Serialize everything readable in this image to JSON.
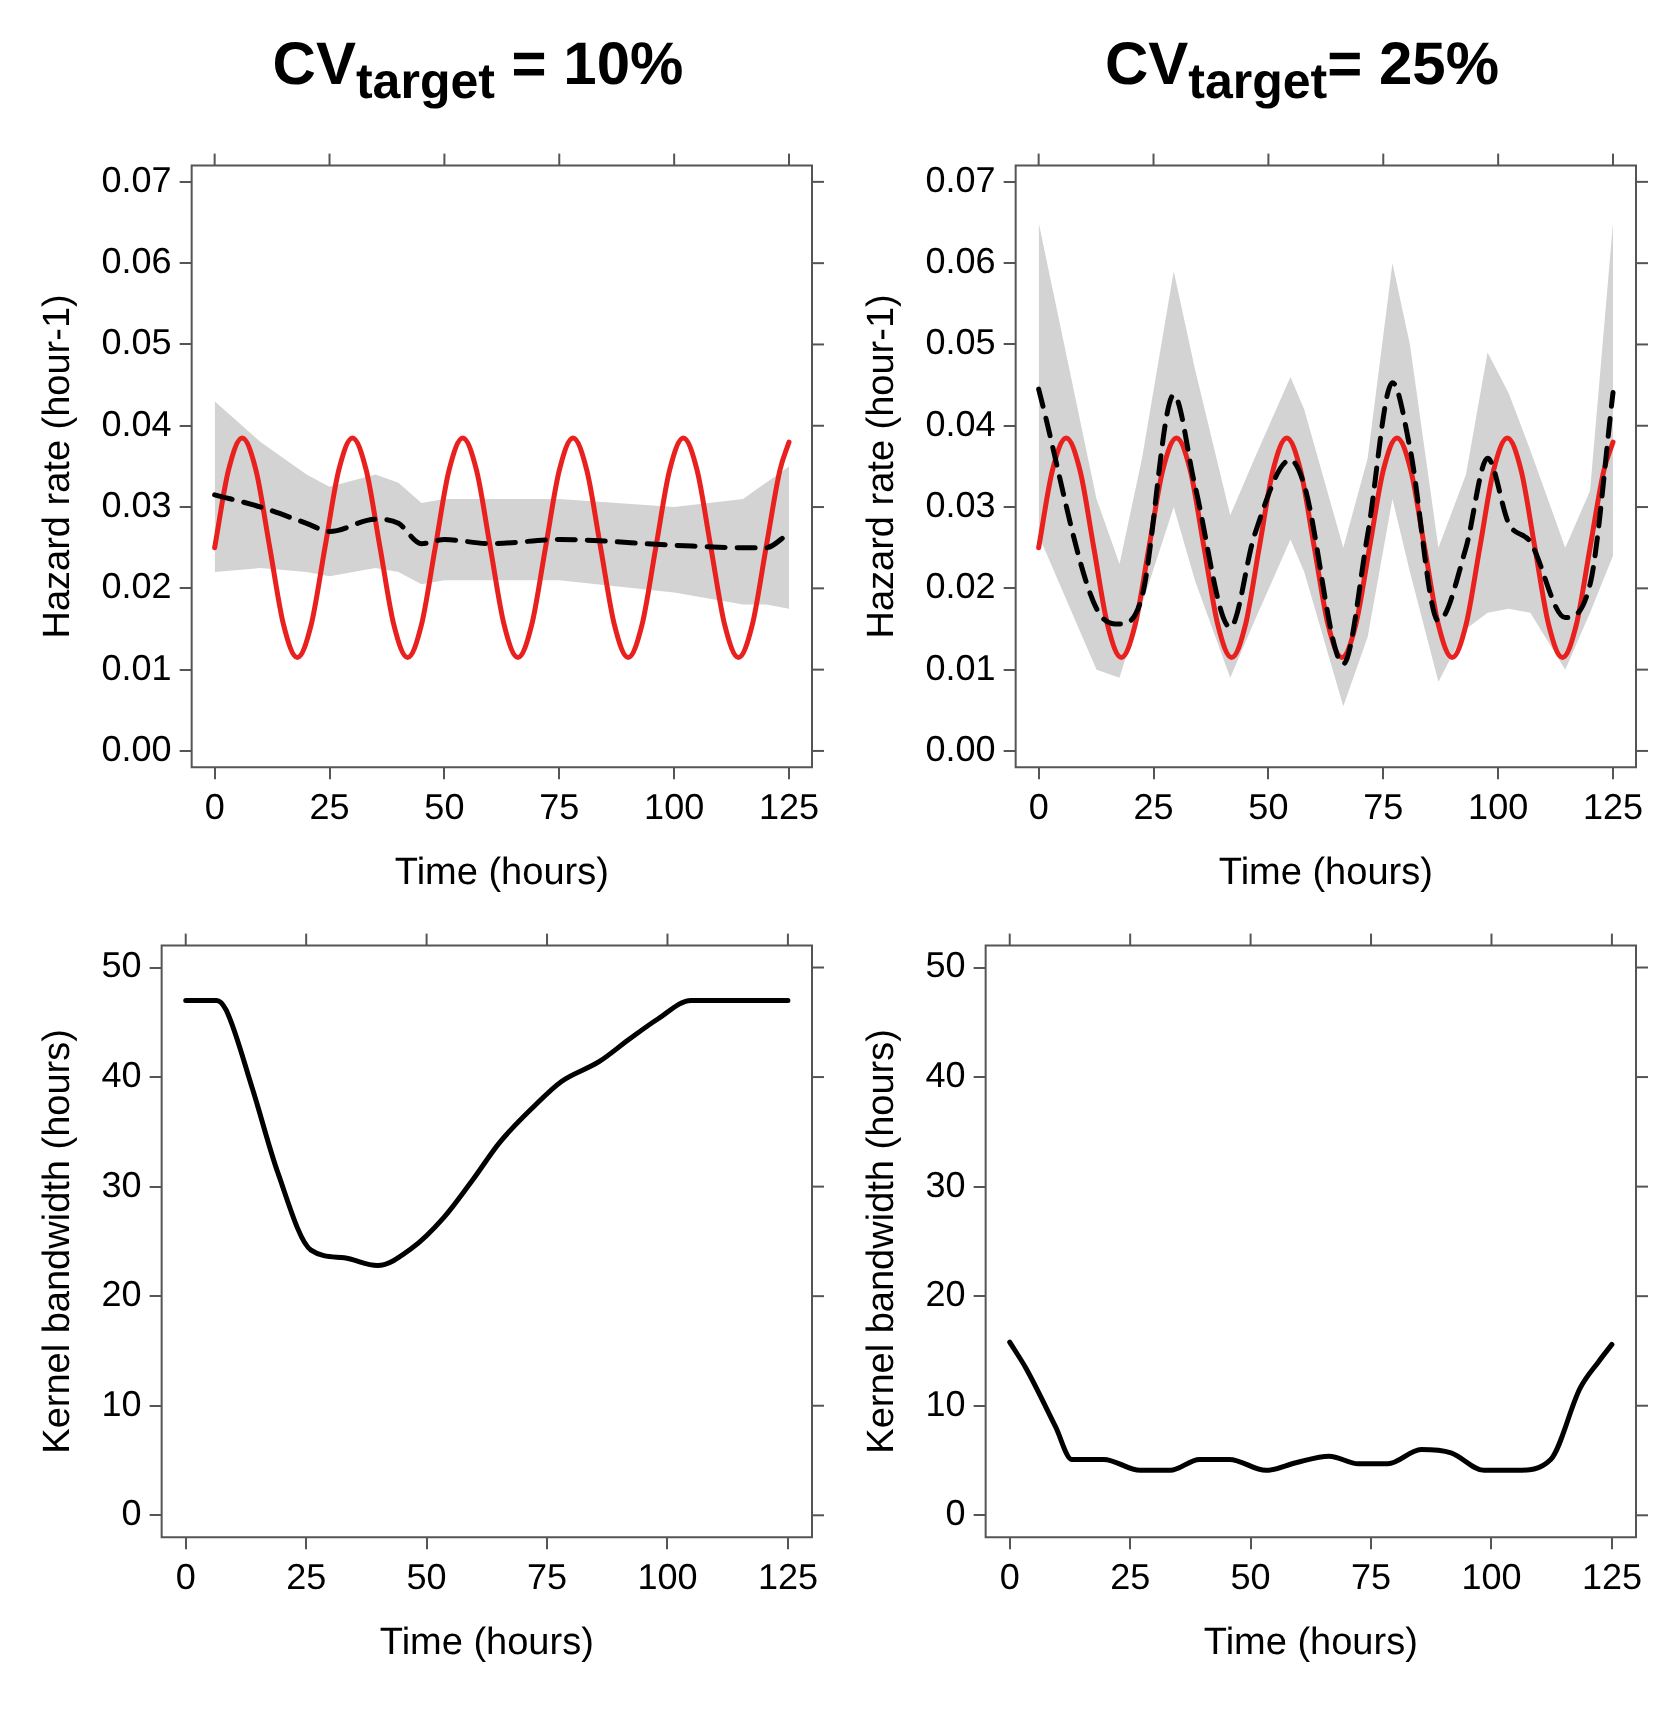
{
  "chart_data": [
    {
      "type": "line",
      "title": "CV$_{target}$ = 10%",
      "xlabel": "Time (hours)",
      "ylabel": "Hazard rate (hour-1)",
      "xlim": [
        -5,
        130
      ],
      "xticks": [
        0,
        25,
        50,
        75,
        100,
        125
      ],
      "ylim": [
        -0.002,
        0.072
      ],
      "yticks": [
        {
          "value": 0,
          "label": "0.00"
        },
        {
          "value": 0.01,
          "label": "0.01"
        },
        {
          "value": 0.02,
          "label": "0.02"
        },
        {
          "value": 0.03,
          "label": "0.03"
        },
        {
          "value": 0.04,
          "label": "0.04"
        },
        {
          "value": 0.05,
          "label": "0.05"
        },
        {
          "value": 0.06,
          "label": "0.06"
        },
        {
          "value": 0.07,
          "label": "0.07"
        }
      ],
      "grid": false,
      "legend": false,
      "marker": "none",
      "series": [
        {
          "color": "#000000",
          "line_style": "dashed",
          "x": [
            0,
            10,
            20,
            25,
            35,
            40,
            45,
            50,
            60,
            75,
            100,
            115,
            120,
            125
          ],
          "values": [
            0.0315,
            0.03,
            0.028,
            0.027,
            0.0285,
            0.028,
            0.0255,
            0.026,
            0.0255,
            0.026,
            0.0253,
            0.025,
            0.025,
            0.0268
          ],
          "upper": [
            0.043,
            0.038,
            0.034,
            0.0325,
            0.034,
            0.033,
            0.0305,
            0.031,
            0.031,
            0.031,
            0.03,
            0.031,
            0.033,
            0.035
          ],
          "lower": [
            0.022,
            0.0225,
            0.022,
            0.0215,
            0.0225,
            0.022,
            0.0205,
            0.021,
            0.021,
            0.021,
            0.0195,
            0.018,
            0.018,
            0.0175
          ]
        },
        {
          "color": "#e8201e",
          "line_style": "solid",
          "x": [
            0,
            3,
            6,
            9,
            12,
            15,
            18,
            21,
            24,
            27,
            30,
            33,
            36,
            39,
            42,
            45,
            48,
            51,
            54,
            57,
            60,
            63,
            66,
            69,
            72,
            75,
            78,
            81,
            84,
            87,
            90,
            93,
            96,
            99,
            102,
            105,
            108,
            111,
            114,
            117,
            120,
            123,
            125
          ],
          "values": [
            0.025,
            0.0345,
            0.0385,
            0.0345,
            0.025,
            0.0155,
            0.0115,
            0.0155,
            0.025,
            0.0345,
            0.0385,
            0.0345,
            0.025,
            0.0155,
            0.0115,
            0.0155,
            0.025,
            0.0345,
            0.0385,
            0.0345,
            0.025,
            0.0155,
            0.0115,
            0.0155,
            0.025,
            0.0345,
            0.0385,
            0.0345,
            0.025,
            0.0155,
            0.0115,
            0.0155,
            0.025,
            0.0345,
            0.0385,
            0.0345,
            0.025,
            0.0155,
            0.0115,
            0.0155,
            0.025,
            0.0345,
            0.038
          ]
        }
      ]
    },
    {
      "type": "line",
      "title": "CV$_{target}$= 25%",
      "xlabel": "Time (hours)",
      "ylabel": "Hazard rate (hour-1)",
      "xlim": [
        -5,
        130
      ],
      "xticks": [
        0,
        25,
        50,
        75,
        100,
        125
      ],
      "ylim": [
        -0.002,
        0.072
      ],
      "yticks": [
        {
          "value": 0,
          "label": "0.00"
        },
        {
          "value": 0.01,
          "label": "0.01"
        },
        {
          "value": 0.02,
          "label": "0.02"
        },
        {
          "value": 0.03,
          "label": "0.03"
        },
        {
          "value": 0.04,
          "label": "0.04"
        },
        {
          "value": 0.05,
          "label": "0.05"
        },
        {
          "value": 0.06,
          "label": "0.06"
        },
        {
          "value": 0.07,
          "label": "0.07"
        }
      ],
      "grid": false,
      "legend": false,
      "marker": "none",
      "series": [
        {
          "color": "#000000",
          "line_style": "dashed",
          "x": [
            0,
            12.6,
            17.6,
            22.5,
            29.4,
            34,
            41.7,
            47,
            54.8,
            57.8,
            66.3,
            71.6,
            77,
            80.8,
            87,
            93,
            97.7,
            102.3,
            107,
            114.6,
            120,
            125
          ],
          "values": [
            0.0445,
            0.0175,
            0.0156,
            0.019,
            0.0438,
            0.0327,
            0.0152,
            0.0266,
            0.0358,
            0.0327,
            0.0107,
            0.0266,
            0.0453,
            0.0373,
            0.016,
            0.025,
            0.036,
            0.028,
            0.0257,
            0.0164,
            0.0205,
            0.0441
          ],
          "upper": [
            0.065,
            0.031,
            0.023,
            0.036,
            0.059,
            0.047,
            0.029,
            0.036,
            0.046,
            0.042,
            0.025,
            0.036,
            0.06,
            0.05,
            0.025,
            0.034,
            0.049,
            0.044,
            0.037,
            0.025,
            0.032,
            0.065
          ],
          "lower": [
            0.0265,
            0.01,
            0.009,
            0.018,
            0.03,
            0.021,
            0.009,
            0.016,
            0.026,
            0.022,
            0.0055,
            0.014,
            0.031,
            0.022,
            0.0085,
            0.015,
            0.017,
            0.0175,
            0.017,
            0.01,
            0.017,
            0.024
          ]
        },
        {
          "color": "#e8201e",
          "line_style": "solid",
          "x": [
            0,
            3,
            6,
            9,
            12,
            15,
            18,
            21,
            24,
            27,
            30,
            33,
            36,
            39,
            42,
            45,
            48,
            51,
            54,
            57,
            60,
            63,
            66,
            69,
            72,
            75,
            78,
            81,
            84,
            87,
            90,
            93,
            96,
            99,
            102,
            105,
            108,
            111,
            114,
            117,
            120,
            123,
            125
          ],
          "values": [
            0.025,
            0.0345,
            0.0385,
            0.0345,
            0.025,
            0.0155,
            0.0115,
            0.0155,
            0.025,
            0.0345,
            0.0385,
            0.0345,
            0.025,
            0.0155,
            0.0115,
            0.0155,
            0.025,
            0.0345,
            0.0385,
            0.0345,
            0.025,
            0.0155,
            0.0115,
            0.0155,
            0.025,
            0.0345,
            0.0385,
            0.0345,
            0.025,
            0.0155,
            0.0115,
            0.0155,
            0.025,
            0.0345,
            0.0385,
            0.0345,
            0.025,
            0.0155,
            0.0115,
            0.0155,
            0.025,
            0.0345,
            0.038
          ]
        }
      ]
    },
    {
      "type": "line",
      "xlabel": "Time (hours)",
      "ylabel": "Kernel bandwidth (hours)",
      "xlim": [
        -5,
        130
      ],
      "xticks": [
        0,
        25,
        50,
        75,
        100,
        125
      ],
      "ylim": [
        -2,
        52
      ],
      "yticks": [
        0,
        10,
        20,
        30,
        40,
        50
      ],
      "grid": false,
      "legend": false,
      "marker": "none",
      "series": [
        {
          "color": "#000000",
          "line_style": "solid",
          "x": [
            0,
            6.4,
            8.4,
            13.8,
            19.1,
            26,
            32.9,
            39.8,
            46.7,
            53.6,
            59.7,
            65.1,
            72,
            78,
            85.8,
            91.9,
            98,
            104.9,
            125
          ],
          "values": [
            47,
            47,
            46.1,
            39,
            31.3,
            24.2,
            23.5,
            22.8,
            24.3,
            27.2,
            30.7,
            34,
            37.2,
            39.6,
            41.4,
            43.4,
            45.3,
            47,
            47
          ]
        }
      ]
    },
    {
      "type": "line",
      "xlabel": "Time (hours)",
      "ylabel": "Kernel bandwidth (hours)",
      "xlim": [
        -5,
        130
      ],
      "xticks": [
        0,
        25,
        50,
        75,
        100,
        125
      ],
      "ylim": [
        -2,
        52
      ],
      "yticks": [
        0,
        10,
        20,
        30,
        40,
        50
      ],
      "grid": false,
      "legend": false,
      "marker": "none",
      "series": [
        {
          "color": "#000000",
          "line_style": "solid",
          "x": [
            0,
            3.4,
            9.5,
            12.9,
            19.5,
            27.1,
            33.3,
            39.4,
            45.6,
            53.2,
            59.4,
            66.3,
            72.4,
            78.5,
            85.4,
            91.6,
            98.5,
            105.4,
            112.3,
            118.4,
            122.2,
            125
          ],
          "values": [
            15.8,
            13.4,
            8.1,
            5.1,
            5.1,
            4.1,
            4.1,
            5.1,
            5.1,
            4.1,
            4.8,
            5.4,
            4.7,
            4.7,
            6.0,
            5.7,
            4.1,
            4.1,
            5.1,
            11.6,
            14,
            15.6
          ]
        }
      ]
    }
  ]
}
